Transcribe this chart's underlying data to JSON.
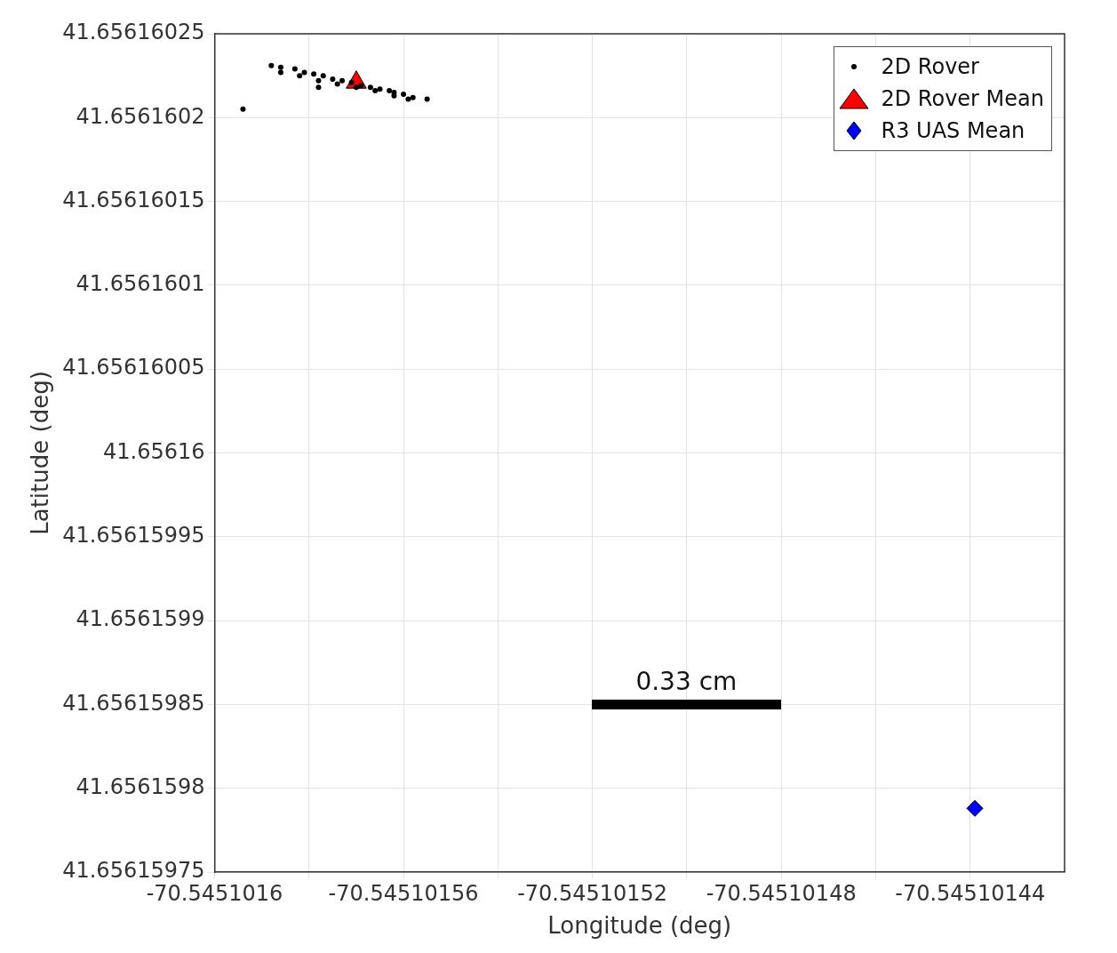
{
  "chart_data": {
    "type": "scatter",
    "xlabel": "Longitude (deg)",
    "ylabel": "Latitude (deg)",
    "xlim": [
      -70.5451016,
      -70.54510142
    ],
    "xticks": [
      -70.5451016,
      {
        "value": -70.54510158,
        "label": null
      },
      -70.54510156,
      {
        "value": -70.54510154,
        "label": null
      },
      -70.54510152,
      {
        "value": -70.5451015,
        "label": null
      },
      -70.54510148,
      {
        "value": -70.54510146,
        "label": null
      },
      -70.54510144
    ],
    "ylim": [
      41.65615975,
      41.65616025
    ],
    "yticks": [
      41.65615975,
      41.6561598,
      41.65615985,
      41.6561599,
      41.65615995,
      41.65616,
      41.65616005,
      41.6561601,
      41.65616015,
      41.6561602,
      41.65616025
    ],
    "grid": true,
    "legend": "top right",
    "annotations": [
      "0.33 cm"
    ],
    "series": [
      {
        "name": "2D Rover",
        "color": "#000000",
        "marker": "circle",
        "x": [
          -70.545101594,
          -70.545101588,
          -70.545101586,
          -70.545101583,
          -70.545101581,
          -70.545101579,
          -70.545101577,
          -70.545101575,
          -70.545101573,
          -70.545101571,
          -70.545101569,
          -70.545101567,
          -70.545101565,
          -70.545101563,
          -70.545101562,
          -70.54510156,
          -70.545101558,
          -70.545101555,
          -70.545101586,
          -70.545101582,
          -70.545101578,
          -70.545101574,
          -70.54510157,
          -70.545101566,
          -70.545101562,
          -70.545101559,
          -70.545101578
        ],
        "values": [
          41.656160205,
          41.656160231,
          41.65616023,
          41.656160229,
          41.656160227,
          41.656160226,
          41.656160225,
          41.656160223,
          41.656160222,
          41.656160221,
          41.656160219,
          41.656160218,
          41.656160217,
          41.656160216,
          41.656160215,
          41.656160214,
          41.656160212,
          41.656160211,
          41.656160227,
          41.656160225,
          41.656160222,
          41.65616022,
          41.656160218,
          41.656160216,
          41.656160213,
          41.656160211,
          41.656160218
        ]
      },
      {
        "name": "2D Rover Mean",
        "color": "#ff0000",
        "marker": "triangle",
        "x": [
          -70.54510157
        ],
        "values": [
          41.656160221
        ]
      },
      {
        "name": "R3 UAS Mean",
        "color": "#0000ff",
        "marker": "diamond",
        "x": [
          -70.545101439
        ],
        "values": [
          41.656159788
        ]
      }
    ]
  }
}
